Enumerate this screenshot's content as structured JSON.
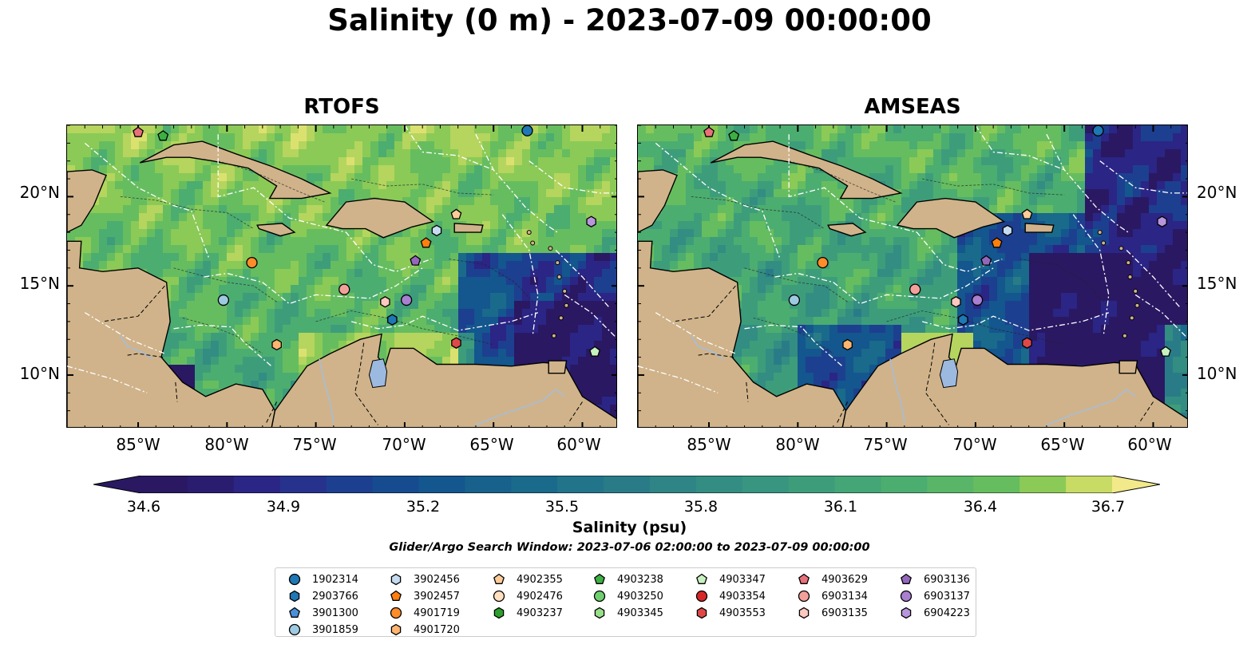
{
  "title": "Salinity (0 m) - 2023-07-09 00:00:00",
  "panels": [
    {
      "title": "RTOFS",
      "model": "rtofs"
    },
    {
      "title": "AMSEAS",
      "model": "amseas"
    }
  ],
  "lon_ticks": [
    "85°W",
    "80°W",
    "75°W",
    "70°W",
    "65°W",
    "60°W"
  ],
  "lat_ticks": [
    "20°N",
    "15°N",
    "10°N"
  ],
  "colorbar": {
    "label": "Salinity (psu)",
    "ticks": [
      "34.6",
      "34.9",
      "35.2",
      "35.5",
      "35.8",
      "36.1",
      "36.4",
      "36.7"
    ],
    "range": [
      34.6,
      36.7
    ],
    "colormap": "haline",
    "extend": "both"
  },
  "search_window": "Glider/Argo Search Window: 2023-07-06 02:00:00 to 2023-07-09 00:00:00",
  "legend": {
    "items": [
      {
        "id": "1902314",
        "marker": "circle",
        "color": "#1f77b4"
      },
      {
        "id": "2903766",
        "marker": "hexagon",
        "color": "#1f77b4"
      },
      {
        "id": "3901300",
        "marker": "pentagon",
        "color": "#4a90d9"
      },
      {
        "id": "3901859",
        "marker": "circle",
        "color": "#9ecae1"
      },
      {
        "id": "3902456",
        "marker": "hexagon",
        "color": "#c6dbef"
      },
      {
        "id": "3902457",
        "marker": "pentagon",
        "color": "#ff7f0e"
      },
      {
        "id": "4901719",
        "marker": "circle",
        "color": "#ff8c2a"
      },
      {
        "id": "4901720",
        "marker": "hexagon",
        "color": "#ffb570"
      },
      {
        "id": "4902355",
        "marker": "pentagon",
        "color": "#ffcc99"
      },
      {
        "id": "4902476",
        "marker": "circle",
        "color": "#ffe0c0"
      },
      {
        "id": "4903237",
        "marker": "hexagon",
        "color": "#2ca02c"
      },
      {
        "id": "4903238",
        "marker": "pentagon",
        "color": "#3cb043"
      },
      {
        "id": "4903250",
        "marker": "circle",
        "color": "#6fcf6f"
      },
      {
        "id": "4903345",
        "marker": "hexagon",
        "color": "#98df8a"
      },
      {
        "id": "4903347",
        "marker": "pentagon",
        "color": "#c7f2c0"
      },
      {
        "id": "4903354",
        "marker": "circle",
        "color": "#d62728"
      },
      {
        "id": "4903553",
        "marker": "hexagon",
        "color": "#e04848"
      },
      {
        "id": "4903629",
        "marker": "pentagon",
        "color": "#e8707a"
      },
      {
        "id": "6903134",
        "marker": "circle",
        "color": "#f4a09a"
      },
      {
        "id": "6903135",
        "marker": "hexagon",
        "color": "#fcc8c0"
      },
      {
        "id": "6903136",
        "marker": "pentagon",
        "color": "#9467bd"
      },
      {
        "id": "6903137",
        "marker": "circle",
        "color": "#a97fd0"
      },
      {
        "id": "6904223",
        "marker": "hexagon",
        "color": "#b896dc"
      }
    ]
  },
  "platforms": [
    {
      "id": "1902314",
      "lon": -63.1,
      "lat": 23.7
    },
    {
      "id": "3901859",
      "lon": -80.2,
      "lat": 14.2
    },
    {
      "id": "3902456",
      "lon": -68.2,
      "lat": 18.1
    },
    {
      "id": "3902457",
      "lon": -68.8,
      "lat": 17.4
    },
    {
      "id": "4901719",
      "lon": -78.6,
      "lat": 16.3
    },
    {
      "id": "4901720",
      "lon": -77.2,
      "lat": 11.7
    },
    {
      "id": "4902355",
      "lon": -67.1,
      "lat": 19.0
    },
    {
      "id": "4903238",
      "lon": -83.6,
      "lat": 23.4
    },
    {
      "id": "4903347",
      "lon": -59.3,
      "lat": 11.3
    },
    {
      "id": "4903553",
      "lon": -67.1,
      "lat": 11.8
    },
    {
      "id": "6903134",
      "lon": -73.4,
      "lat": 14.8
    },
    {
      "id": "6903135",
      "lon": -71.1,
      "lat": 14.1
    },
    {
      "id": "6903136",
      "lon": -69.4,
      "lat": 16.4
    },
    {
      "id": "6903137",
      "lon": -69.9,
      "lat": 14.2
    },
    {
      "id": "6904223",
      "lon": -59.5,
      "lat": 18.6
    },
    {
      "id": "2903766",
      "lon": -70.7,
      "lat": 13.1
    },
    {
      "id": "4903629",
      "lon": -85.0,
      "lat": 23.6
    }
  ]
}
